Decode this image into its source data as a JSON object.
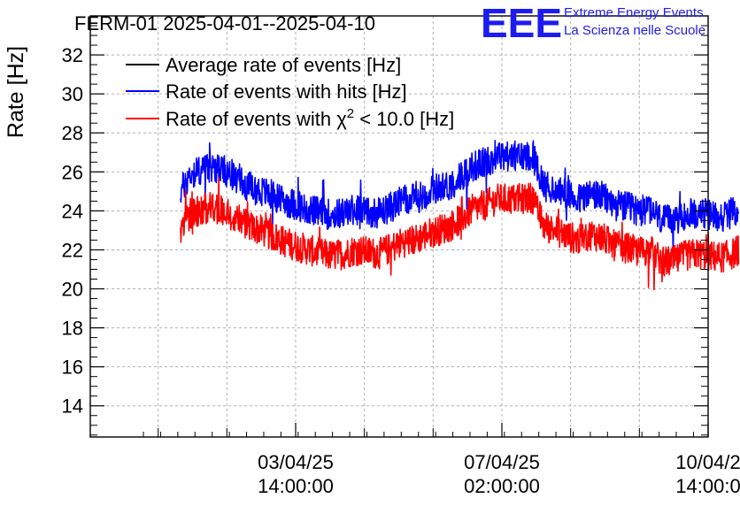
{
  "chart_data": {
    "type": "line",
    "title": "FERM-01 2025-04-01--2025-04-10",
    "ylabel": "Rate [Hz]",
    "xlabel": "",
    "ylim": [
      12.4,
      34
    ],
    "y_ticks": [
      14,
      16,
      18,
      20,
      22,
      24,
      26,
      28,
      30,
      32
    ],
    "x_ticks": [
      {
        "line1": "03/04/25",
        "line2": "14:00:00"
      },
      {
        "line1": "07/04/25",
        "line2": "02:00:00"
      },
      {
        "line1": "10/04/2",
        "line2": "14:00:0"
      }
    ],
    "grid": true,
    "legend_position": "top-left",
    "legend": [
      {
        "label": "Average rate of events [Hz]",
        "color": "#000000"
      },
      {
        "label": "Rate of events with hits [Hz]",
        "color": "#0000ff"
      },
      {
        "label_prefix": "Rate of events with ",
        "label_symbol": "χ",
        "label_sup": "2",
        "label_suffix": " < 10.0 [Hz]",
        "color": "#ff0000"
      }
    ],
    "x_unit": "days since 2025-04-01 00:00",
    "series": [
      {
        "name": "Rate of events with hits [Hz]",
        "color": "#0000ff",
        "x": [
          0.63,
          0.8,
          1.0,
          1.2,
          1.4,
          1.6,
          1.8,
          2.0,
          2.2,
          2.4,
          2.6,
          2.8,
          3.0,
          3.2,
          3.4,
          3.6,
          3.8,
          4.0,
          4.2,
          4.4,
          4.6,
          4.8,
          5.0,
          5.2,
          5.4,
          5.6,
          5.8,
          6.0,
          6.2,
          6.4,
          6.6,
          6.8,
          7.0,
          7.2,
          7.4,
          7.6,
          7.8,
          8.0,
          8.2,
          8.4,
          8.6,
          8.8,
          9.0,
          9.2,
          9.4,
          9.6,
          9.8,
          10.0,
          10.1
        ],
        "y": [
          25.0,
          25.9,
          26.1,
          26.3,
          26.0,
          25.7,
          25.2,
          25.0,
          24.8,
          24.5,
          24.3,
          24.1,
          23.9,
          23.8,
          23.9,
          24.1,
          24.0,
          23.9,
          24.2,
          24.5,
          24.6,
          24.9,
          25.2,
          25.3,
          25.8,
          26.3,
          26.5,
          26.8,
          26.8,
          26.8,
          26.9,
          25.3,
          25.1,
          24.8,
          24.6,
          24.9,
          24.7,
          24.3,
          24.2,
          24.0,
          24.1,
          23.5,
          23.5,
          23.8,
          23.9,
          23.8,
          23.7,
          23.9,
          24.1
        ],
        "noise_amplitude": 0.8
      },
      {
        "name": "Rate of events with χ2 < 10.0 [Hz]",
        "color": "#ff0000",
        "x": [
          0.63,
          0.8,
          1.0,
          1.2,
          1.4,
          1.6,
          1.8,
          2.0,
          2.2,
          2.4,
          2.6,
          2.8,
          3.0,
          3.2,
          3.4,
          3.6,
          3.8,
          4.0,
          4.2,
          4.4,
          4.6,
          4.8,
          5.0,
          5.2,
          5.4,
          5.6,
          5.8,
          6.0,
          6.2,
          6.4,
          6.6,
          6.8,
          7.0,
          7.2,
          7.4,
          7.6,
          7.8,
          8.0,
          8.2,
          8.4,
          8.6,
          8.8,
          9.0,
          9.2,
          9.4,
          9.6,
          9.8,
          10.0,
          10.1
        ],
        "y": [
          23.0,
          23.9,
          24.1,
          24.2,
          23.9,
          23.6,
          23.2,
          23.0,
          22.7,
          22.4,
          22.2,
          22.0,
          21.8,
          21.7,
          21.8,
          22.0,
          21.9,
          21.8,
          22.1,
          22.4,
          22.5,
          22.8,
          23.0,
          23.2,
          23.6,
          24.1,
          24.3,
          24.6,
          24.6,
          24.6,
          24.7,
          23.2,
          23.0,
          22.7,
          22.5,
          22.8,
          22.6,
          22.2,
          22.1,
          21.9,
          22.0,
          21.4,
          21.4,
          21.7,
          21.8,
          21.7,
          21.6,
          21.8,
          22.0
        ],
        "noise_amplitude": 0.8
      }
    ]
  },
  "logo": {
    "mark": "EEE",
    "line1": "Extreme Energy Events",
    "line2": "La Scienza nelle Scuole"
  }
}
